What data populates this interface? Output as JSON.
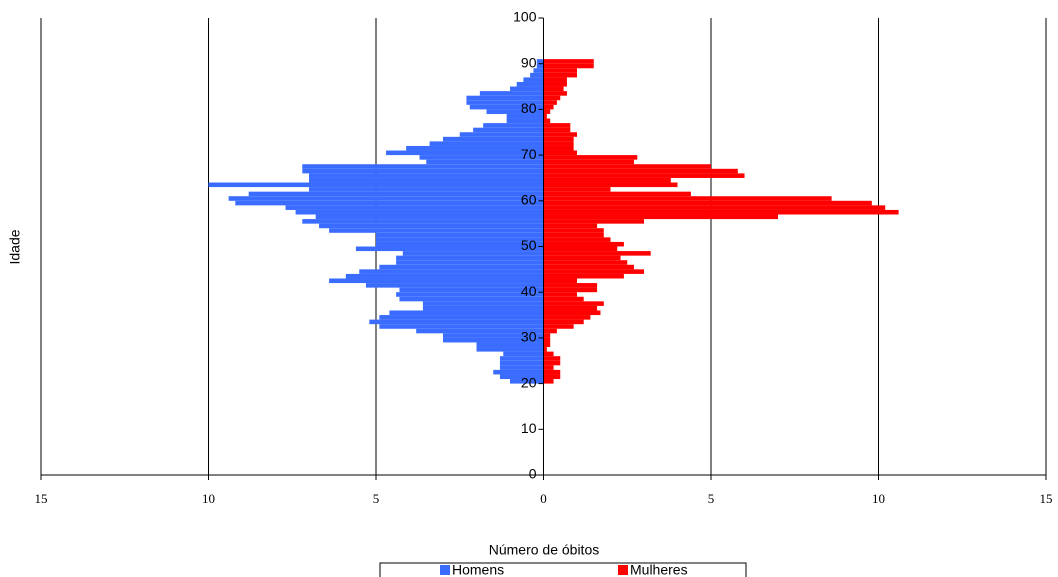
{
  "chart_data": {
    "type": "horizontal-bar",
    "x_label": "Número de óbitos",
    "y_label": "Idade",
    "y": [
      20,
      21,
      22,
      23,
      24,
      25,
      26,
      27,
      28,
      29,
      30,
      31,
      32,
      33,
      34,
      35,
      36,
      37,
      38,
      39,
      40,
      41,
      42,
      43,
      44,
      45,
      46,
      47,
      48,
      49,
      50,
      51,
      52,
      53,
      54,
      55,
      56,
      57,
      58,
      59,
      60,
      61,
      62,
      63,
      64,
      65,
      66,
      67,
      68,
      69,
      70,
      71,
      72,
      73,
      74,
      75,
      76,
      77,
      78,
      79,
      80,
      81,
      82,
      83,
      84,
      85,
      86,
      87,
      88,
      89,
      90
    ],
    "series": [
      {
        "name": "Homens",
        "color": "#3a6cff",
        "values": [
          -1.0,
          -1.3,
          -1.5,
          -1.3,
          -1.3,
          -1.3,
          -1.2,
          -2.0,
          -2.0,
          -3.0,
          -3.0,
          -3.8,
          -4.9,
          -5.2,
          -4.9,
          -4.6,
          -3.6,
          -3.6,
          -4.3,
          -4.4,
          -4.3,
          -5.3,
          -6.4,
          -5.9,
          -5.5,
          -4.9,
          -4.4,
          -4.4,
          -4.2,
          -5.6,
          -5.0,
          -5.0,
          -5.0,
          -6.4,
          -6.7,
          -7.2,
          -6.8,
          -7.4,
          -7.7,
          -9.2,
          -9.4,
          -8.8,
          -7.0,
          -10.0,
          -7.0,
          -7.0,
          -7.2,
          -7.2,
          -3.5,
          -3.7,
          -4.7,
          -4.1,
          -3.4,
          -3.0,
          -2.5,
          -2.1,
          -1.8,
          -1.1,
          -1.1,
          -1.7,
          -2.2,
          -2.3,
          -2.3,
          -1.9,
          -1.0,
          -0.8,
          -0.6,
          -0.4,
          -0.3,
          -0.2,
          -0.2
        ]
      },
      {
        "name": "Mulheres",
        "color": "#ff0000",
        "values": [
          0.3,
          0.5,
          0.5,
          0.3,
          0.5,
          0.5,
          0.3,
          0.1,
          0.2,
          0.2,
          0.2,
          0.4,
          0.9,
          1.2,
          1.4,
          1.7,
          1.6,
          1.8,
          1.2,
          1.0,
          1.6,
          1.6,
          1.0,
          2.4,
          3.0,
          2.7,
          2.5,
          2.3,
          3.2,
          2.2,
          2.4,
          2.0,
          1.8,
          1.8,
          1.6,
          3.0,
          7.0,
          10.6,
          10.2,
          9.8,
          8.6,
          4.4,
          2.0,
          4.0,
          3.8,
          6.0,
          5.8,
          5.0,
          2.7,
          2.8,
          1.0,
          0.9,
          0.9,
          0.9,
          1.0,
          0.8,
          0.8,
          0.2,
          0.1,
          0.2,
          0.3,
          0.4,
          0.5,
          0.7,
          0.6,
          0.7,
          0.7,
          1.0,
          1.0,
          1.5,
          1.5
        ]
      }
    ],
    "xlim": [
      -15,
      15
    ],
    "xticks": [
      {
        "value": -15,
        "label": "15"
      },
      {
        "value": -10,
        "label": "10"
      },
      {
        "value": -5,
        "label": "5"
      },
      0,
      5,
      10,
      15
    ],
    "ylim": [
      0,
      100
    ],
    "yticks": [
      0,
      10,
      20,
      30,
      40,
      50,
      60,
      70,
      80,
      90,
      100
    ],
    "grid": true
  }
}
